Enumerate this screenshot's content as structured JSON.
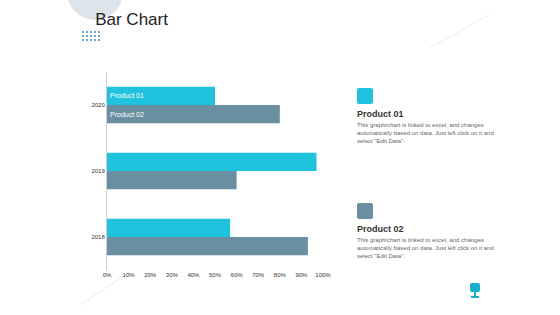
{
  "chart_data": {
    "type": "bar",
    "title": "Bar Chart",
    "orientation": "horizontal",
    "categories": [
      "2018",
      "2019",
      "2020"
    ],
    "series": [
      {
        "name": "Product 01",
        "color": "#1fc3dd",
        "values": [
          57,
          97,
          50
        ]
      },
      {
        "name": "Product 02",
        "color": "#6a8fa1",
        "values": [
          93,
          60,
          80
        ]
      }
    ],
    "xlim": [
      0,
      100
    ],
    "xticks": [
      {
        "value": 0,
        "label": "0%"
      },
      {
        "value": 10,
        "label": "10%"
      },
      {
        "value": 20,
        "label": "20%"
      },
      {
        "value": 30,
        "label": "30%"
      },
      {
        "value": 40,
        "label": "40%"
      },
      {
        "value": 50,
        "label": "50%"
      },
      {
        "value": 60,
        "label": "60%"
      },
      {
        "value": 70,
        "label": "70%"
      },
      {
        "value": 80,
        "label": "80%"
      },
      {
        "value": 90,
        "label": "90%"
      },
      {
        "value": 100,
        "label": "100%"
      }
    ],
    "grid": false
  },
  "side_notes": [
    {
      "title": "Product 01",
      "text": "This graph/chart is linked to excel, and changes automatically based on data. Just left click on it and select \"Edit Data\"."
    },
    {
      "title": "Product 02",
      "text": "This graph/chart is linked to excel, and changes automatically based on data. Just left click on it and select \"Edit Data\"."
    }
  ]
}
